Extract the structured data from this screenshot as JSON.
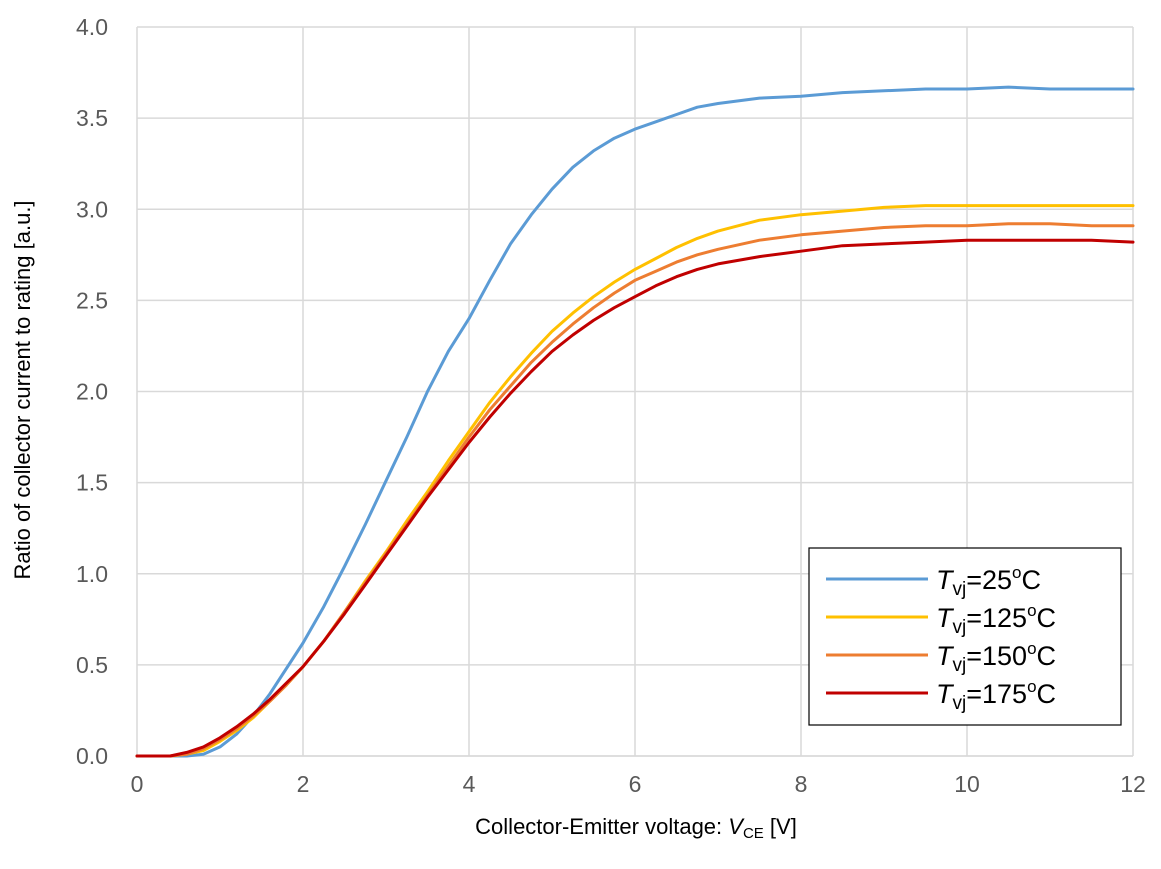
{
  "chart_data": {
    "type": "line",
    "title": "",
    "xlabel": {
      "prefix": "Collector-Emitter voltage: ",
      "var": "V",
      "sub": "CE",
      "suffix": " [V]"
    },
    "ylabel": "Ratio of collector current to rating [a.u.]",
    "xlim": [
      0,
      12
    ],
    "ylim": [
      0,
      4
    ],
    "xticks": [
      "0",
      "2",
      "4",
      "6",
      "8",
      "10",
      "12"
    ],
    "yticks": [
      "0.0",
      "0.5",
      "1.0",
      "1.5",
      "2.0",
      "2.5",
      "3.0",
      "3.5",
      "4.0"
    ],
    "grid": true,
    "legend_position": "bottom-right",
    "series": [
      {
        "name": "25",
        "legend": {
          "var": "T",
          "sub": "vj",
          "eq": "=",
          "value": "25",
          "deg": "o",
          "unit": "C"
        },
        "color": "#5B9BD5",
        "x": [
          0,
          0.4,
          0.6,
          0.8,
          1.0,
          1.2,
          1.4,
          1.6,
          1.8,
          2.0,
          2.25,
          2.5,
          2.75,
          3.0,
          3.25,
          3.5,
          3.75,
          4.0,
          4.25,
          4.5,
          4.75,
          5.0,
          5.25,
          5.5,
          5.75,
          6.0,
          6.25,
          6.5,
          6.75,
          7.0,
          7.5,
          8.0,
          8.5,
          9.0,
          9.5,
          10.0,
          10.5,
          11.0,
          11.5,
          12.0
        ],
        "y": [
          0,
          0,
          0,
          0.01,
          0.05,
          0.12,
          0.22,
          0.34,
          0.48,
          0.62,
          0.82,
          1.04,
          1.27,
          1.51,
          1.75,
          2.0,
          2.22,
          2.4,
          2.61,
          2.81,
          2.97,
          3.11,
          3.23,
          3.32,
          3.39,
          3.44,
          3.48,
          3.52,
          3.56,
          3.58,
          3.61,
          3.62,
          3.64,
          3.65,
          3.66,
          3.66,
          3.67,
          3.66,
          3.66,
          3.66
        ]
      },
      {
        "name": "125",
        "legend": {
          "var": "T",
          "sub": "vj",
          "eq": "=",
          "value": "125",
          "deg": "o",
          "unit": "C"
        },
        "color": "#FFC000",
        "x": [
          0,
          0.4,
          0.6,
          0.8,
          1.0,
          1.2,
          1.4,
          1.6,
          1.8,
          2.0,
          2.25,
          2.5,
          2.75,
          3.0,
          3.25,
          3.5,
          3.75,
          4.0,
          4.25,
          4.5,
          4.75,
          5.0,
          5.25,
          5.5,
          5.75,
          6.0,
          6.25,
          6.5,
          6.75,
          7.0,
          7.5,
          8.0,
          8.5,
          9.0,
          9.5,
          10.0,
          10.5,
          11.0,
          11.5,
          12.0
        ],
        "y": [
          0,
          0,
          0.01,
          0.03,
          0.08,
          0.14,
          0.21,
          0.3,
          0.39,
          0.49,
          0.63,
          0.79,
          0.96,
          1.12,
          1.29,
          1.45,
          1.62,
          1.78,
          1.94,
          2.08,
          2.21,
          2.33,
          2.43,
          2.52,
          2.6,
          2.67,
          2.73,
          2.79,
          2.84,
          2.88,
          2.94,
          2.97,
          2.99,
          3.01,
          3.02,
          3.02,
          3.02,
          3.02,
          3.02,
          3.02
        ]
      },
      {
        "name": "150",
        "legend": {
          "var": "T",
          "sub": "vj",
          "eq": "=",
          "value": "150",
          "deg": "o",
          "unit": "C"
        },
        "color": "#ED7D31",
        "x": [
          0,
          0.4,
          0.6,
          0.8,
          1.0,
          1.2,
          1.4,
          1.6,
          1.8,
          2.0,
          2.25,
          2.5,
          2.75,
          3.0,
          3.25,
          3.5,
          3.75,
          4.0,
          4.25,
          4.5,
          4.75,
          5.0,
          5.25,
          5.5,
          5.75,
          6.0,
          6.25,
          6.5,
          6.75,
          7.0,
          7.5,
          8.0,
          8.5,
          9.0,
          9.5,
          10.0,
          10.5,
          11.0,
          11.5,
          12.0
        ],
        "y": [
          0,
          0,
          0.01,
          0.04,
          0.09,
          0.15,
          0.22,
          0.3,
          0.39,
          0.49,
          0.63,
          0.79,
          0.95,
          1.11,
          1.27,
          1.43,
          1.59,
          1.75,
          1.9,
          2.03,
          2.16,
          2.27,
          2.37,
          2.46,
          2.54,
          2.61,
          2.66,
          2.71,
          2.75,
          2.78,
          2.83,
          2.86,
          2.88,
          2.9,
          2.91,
          2.91,
          2.92,
          2.92,
          2.91,
          2.91
        ]
      },
      {
        "name": "175",
        "legend": {
          "var": "T",
          "sub": "vj",
          "eq": "=",
          "value": "175",
          "deg": "o",
          "unit": "C"
        },
        "color": "#C00000",
        "x": [
          0,
          0.4,
          0.6,
          0.8,
          1.0,
          1.2,
          1.4,
          1.6,
          1.8,
          2.0,
          2.25,
          2.5,
          2.75,
          3.0,
          3.25,
          3.5,
          3.75,
          4.0,
          4.25,
          4.5,
          4.75,
          5.0,
          5.25,
          5.5,
          5.75,
          6.0,
          6.25,
          6.5,
          6.75,
          7.0,
          7.5,
          8.0,
          8.5,
          9.0,
          9.5,
          10.0,
          10.5,
          11.0,
          11.5,
          12.0
        ],
        "y": [
          0,
          0,
          0.02,
          0.05,
          0.1,
          0.16,
          0.23,
          0.31,
          0.4,
          0.49,
          0.63,
          0.78,
          0.94,
          1.1,
          1.26,
          1.42,
          1.57,
          1.72,
          1.86,
          1.99,
          2.11,
          2.22,
          2.31,
          2.39,
          2.46,
          2.52,
          2.58,
          2.63,
          2.67,
          2.7,
          2.74,
          2.77,
          2.8,
          2.81,
          2.82,
          2.83,
          2.83,
          2.83,
          2.83,
          2.82
        ]
      }
    ]
  }
}
